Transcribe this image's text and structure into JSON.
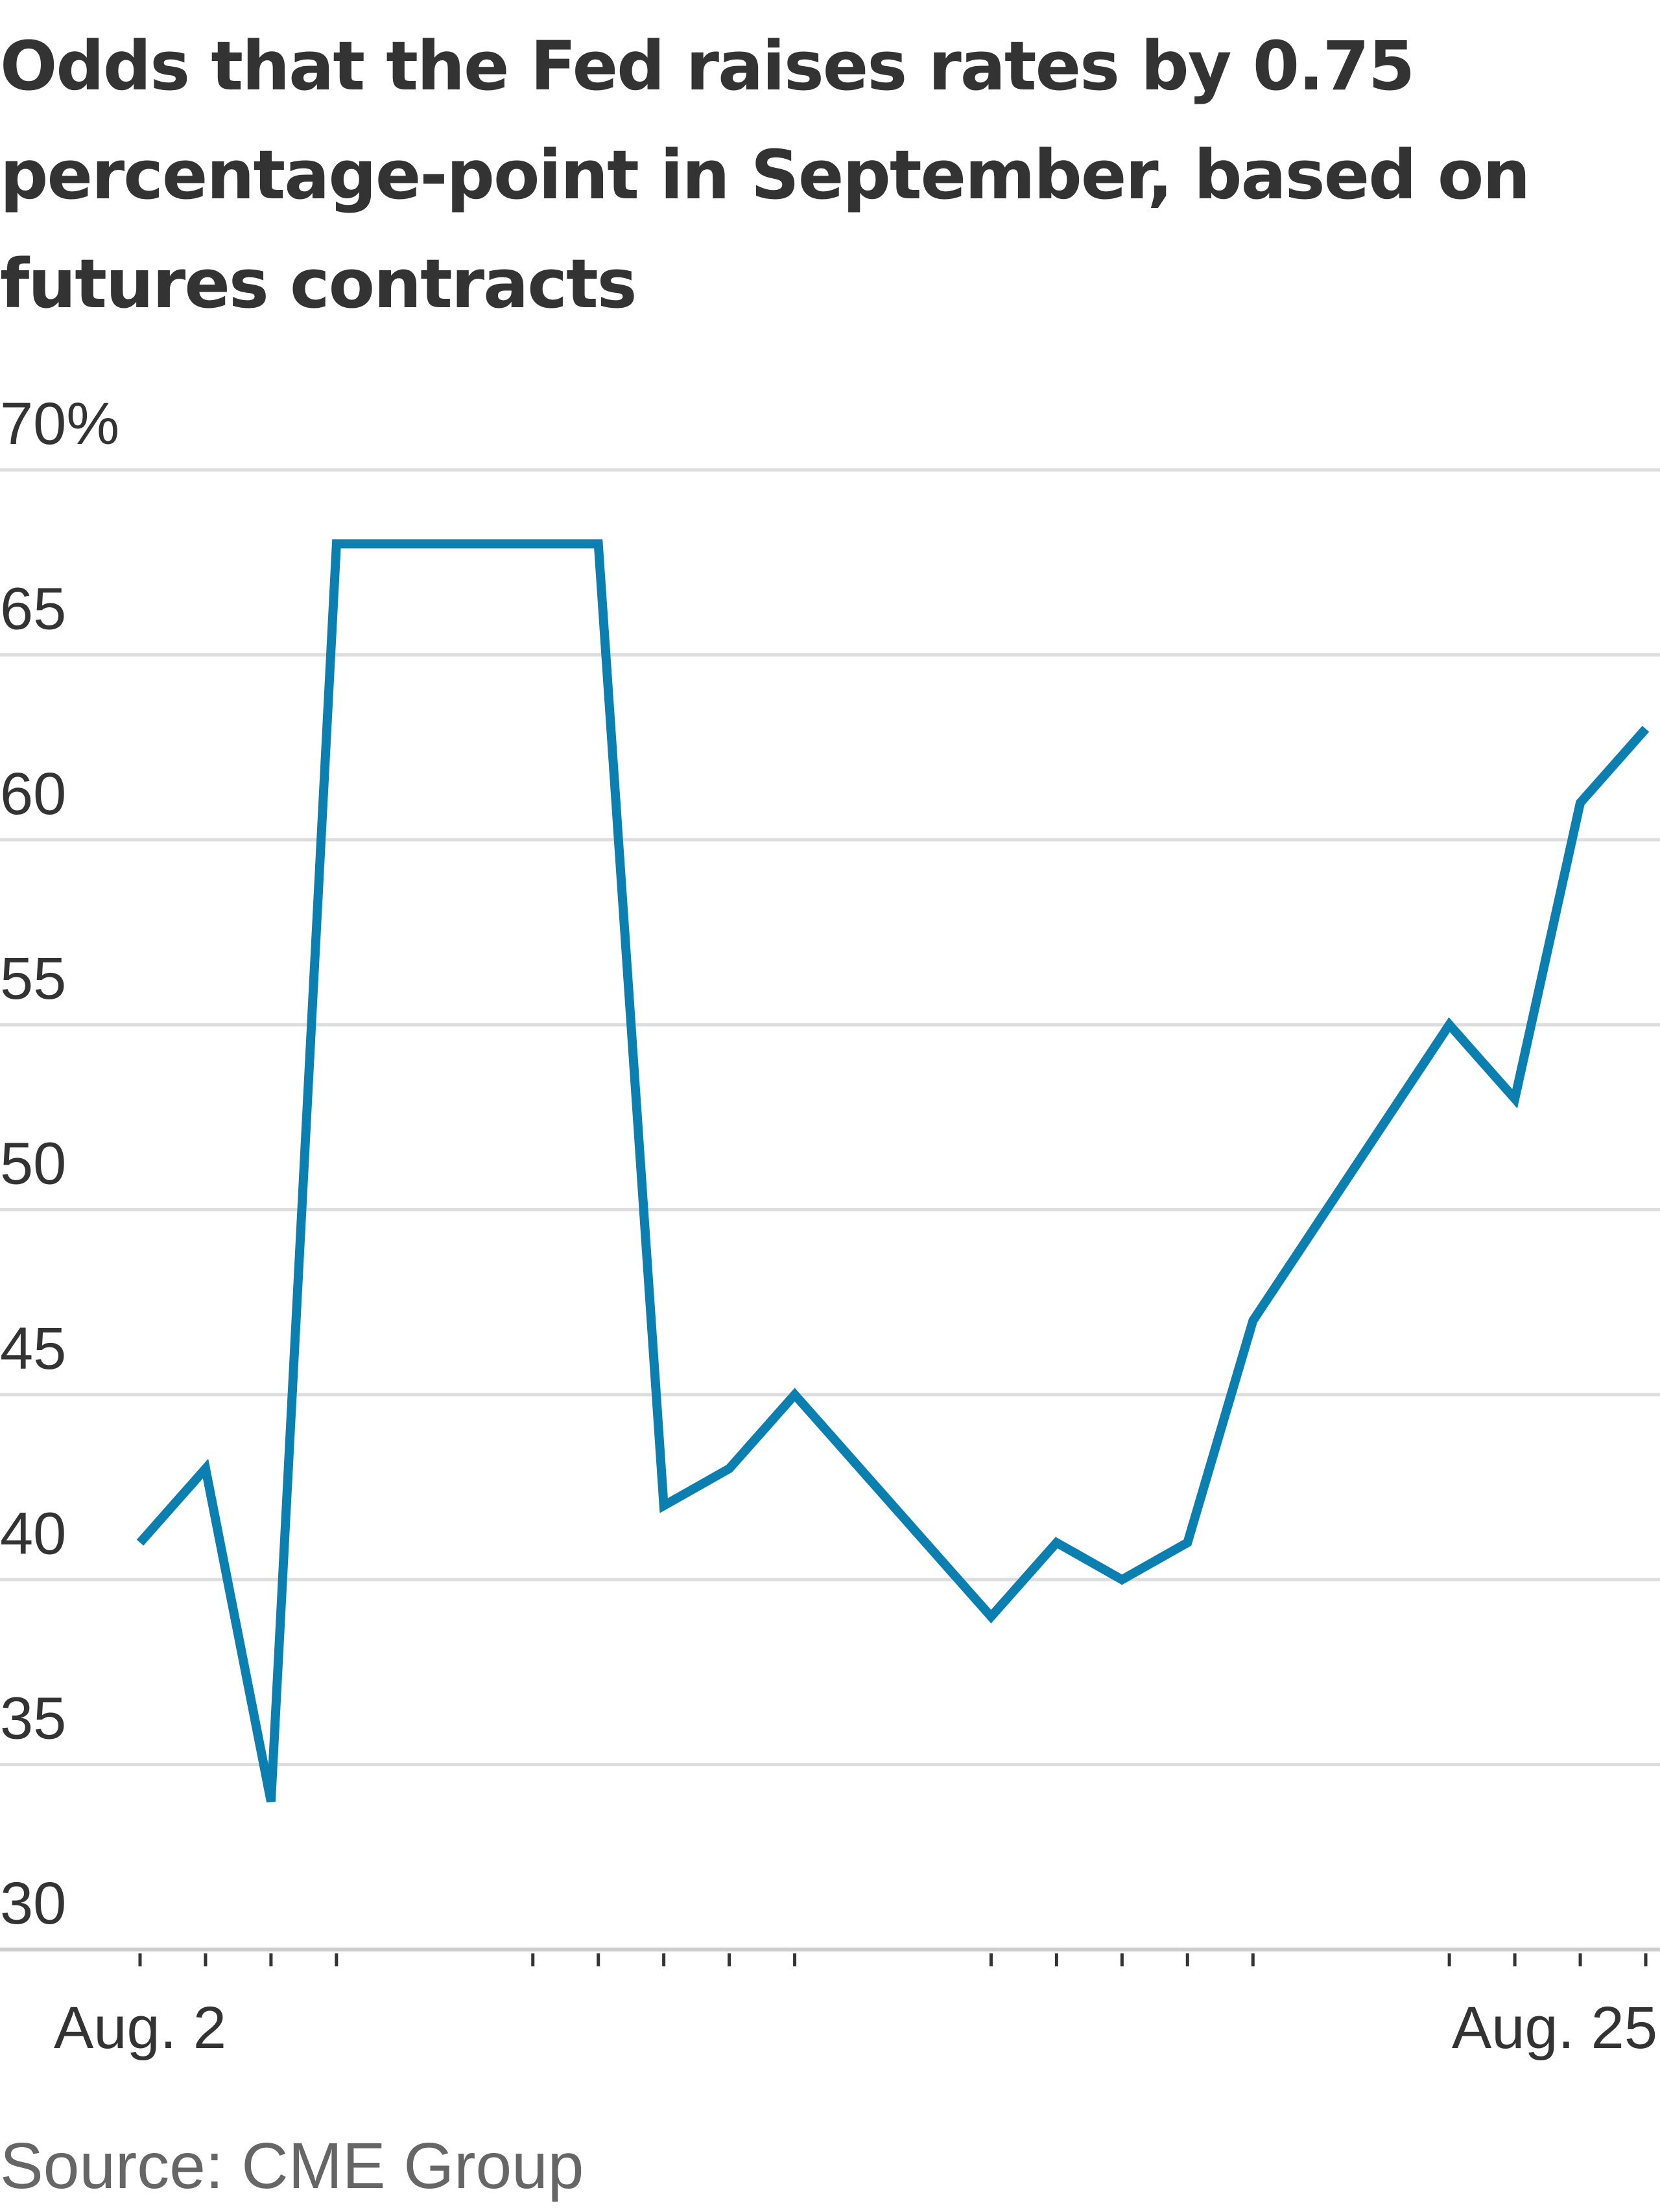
{
  "title": "Odds that the Fed raises rates by 0.75 percentage-point in September, based on futures contracts",
  "source": "Source: CME Group",
  "colors": {
    "line": "#0a7fb0",
    "grid": "#dddddd",
    "axis": "#cccccc",
    "text": "#333333"
  },
  "chart_data": {
    "type": "line",
    "title": "Odds that the Fed raises rates by 0.75 percentage-point in September, based on futures contracts",
    "ylabel": "",
    "xlabel": "",
    "ylim": [
      30,
      70
    ],
    "yticks": [
      "70%",
      "65",
      "60",
      "55",
      "50",
      "45",
      "40",
      "35",
      "30"
    ],
    "x_tick_labels": [
      {
        "x": "Aug. 2",
        "label": "Aug. 2"
      },
      {
        "x": "Aug. 25",
        "label": "Aug. 25"
      }
    ],
    "grid": true,
    "x": [
      "Aug. 2",
      "Aug. 3",
      "Aug. 4",
      "Aug. 5",
      "Aug. 8",
      "Aug. 9",
      "Aug. 10",
      "Aug. 11",
      "Aug. 12",
      "Aug. 15",
      "Aug. 16",
      "Aug. 17",
      "Aug. 18",
      "Aug. 19",
      "Aug. 22",
      "Aug. 23",
      "Aug. 24",
      "Aug. 25"
    ],
    "series": [
      {
        "values": [
          41,
          43,
          34,
          68,
          68,
          68,
          42,
          43,
          45,
          39,
          41,
          40,
          41,
          47,
          55,
          53,
          61,
          63
        ],
        "dates": [
          2,
          3,
          4,
          5,
          8,
          9,
          10,
          11,
          12,
          15,
          16,
          17,
          18,
          19,
          22,
          23,
          24,
          25
        ]
      }
    ]
  }
}
